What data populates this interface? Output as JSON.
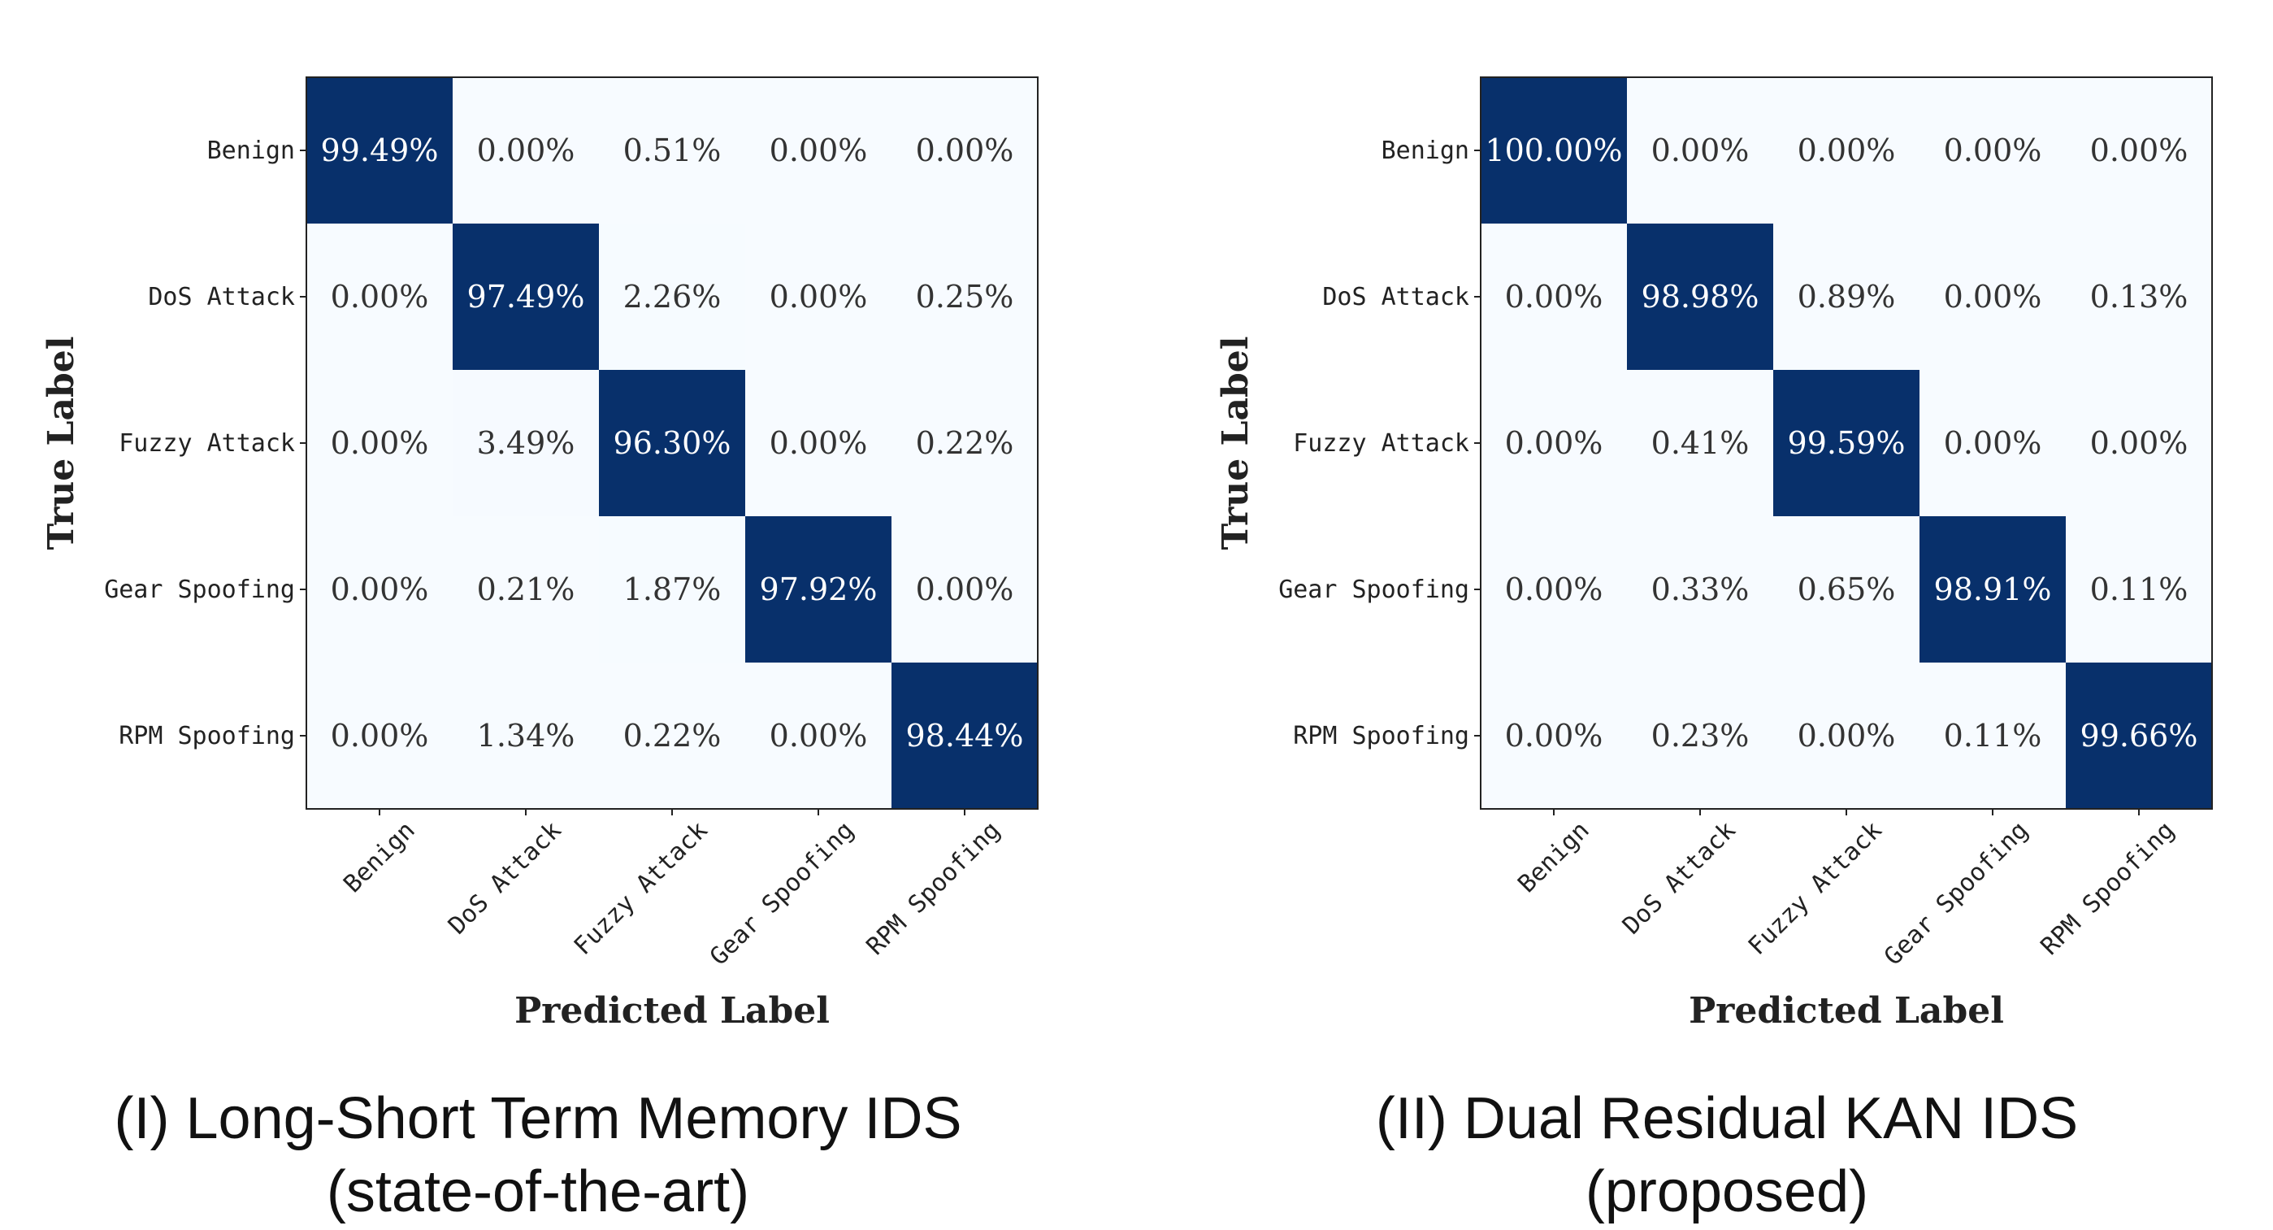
{
  "chart_data": [
    {
      "type": "heatmap",
      "title": "",
      "xlabel": "Predicted Label",
      "ylabel": "True Label",
      "x_categories": [
        "Benign",
        "DoS Attack",
        "Fuzzy Attack",
        "Gear Spoofing",
        "RPM Spoofing"
      ],
      "y_categories": [
        "Benign",
        "DoS Attack",
        "Fuzzy Attack",
        "Gear Spoofing",
        "RPM Spoofing"
      ],
      "values": [
        [
          99.49,
          0.0,
          0.51,
          0.0,
          0.0
        ],
        [
          0.0,
          97.49,
          2.26,
          0.0,
          0.25
        ],
        [
          0.0,
          3.49,
          96.3,
          0.0,
          0.22
        ],
        [
          0.0,
          0.21,
          1.87,
          97.92,
          0.0
        ],
        [
          0.0,
          1.34,
          0.22,
          0.0,
          98.44
        ]
      ],
      "value_unit": "%",
      "caption_line1": "(I) Long-Short Term Memory IDS",
      "caption_line2": "(state-of-the-art)",
      "colormap": {
        "low": "#f7fbff",
        "high": "#08306b"
      }
    },
    {
      "type": "heatmap",
      "title": "",
      "xlabel": "Predicted Label",
      "ylabel": "True Label",
      "x_categories": [
        "Benign",
        "DoS Attack",
        "Fuzzy Attack",
        "Gear Spoofing",
        "RPM Spoofing"
      ],
      "y_categories": [
        "Benign",
        "DoS Attack",
        "Fuzzy Attack",
        "Gear Spoofing",
        "RPM Spoofing"
      ],
      "values": [
        [
          100.0,
          0.0,
          0.0,
          0.0,
          0.0
        ],
        [
          0.0,
          98.98,
          0.89,
          0.0,
          0.13
        ],
        [
          0.0,
          0.41,
          99.59,
          0.0,
          0.0
        ],
        [
          0.0,
          0.33,
          0.65,
          98.91,
          0.11
        ],
        [
          0.0,
          0.23,
          0.0,
          0.11,
          99.66
        ]
      ],
      "value_unit": "%",
      "caption_line1": "(II) Dual Residual KAN IDS",
      "caption_line2": "(proposed)",
      "colormap": {
        "low": "#f7fbff",
        "high": "#08306b"
      }
    }
  ]
}
